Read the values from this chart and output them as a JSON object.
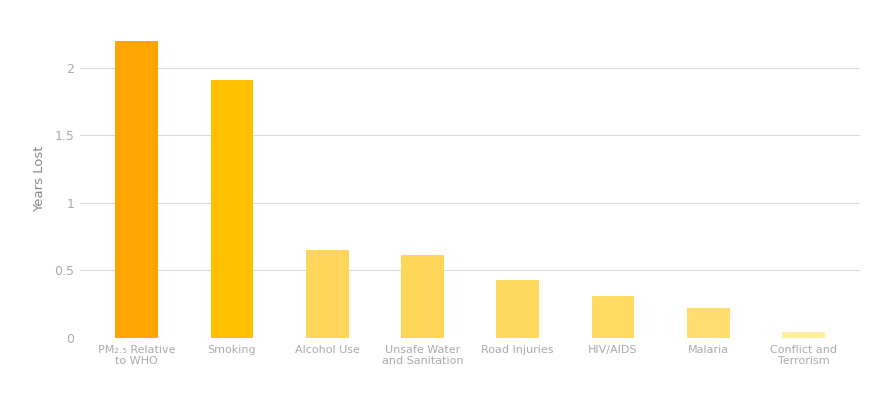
{
  "categories": [
    "PM₂.₅ Relative\nto WHO",
    "Smoking",
    "Alcohol Use",
    "Unsafe Water\nand Sanitation",
    "Road Injuries",
    "HIV/AIDS",
    "Malaria",
    "Conflict and\nTerrorism"
  ],
  "values": [
    2.2,
    1.91,
    0.65,
    0.61,
    0.43,
    0.31,
    0.22,
    0.04
  ],
  "bar_colors": [
    "#FFA500",
    "#FFC000",
    "#FFD55A",
    "#FFD55A",
    "#FFD860",
    "#FFDA65",
    "#FFDD70",
    "#FFEEA0"
  ],
  "ylabel": "Years Lost",
  "yticks": [
    0,
    0.5,
    1,
    1.5,
    2
  ],
  "ylim": [
    0,
    2.35
  ],
  "background_color": "#ffffff",
  "grid_color": "#d8d8d8",
  "tick_label_color": "#aaaaaa",
  "axis_label_color": "#888888",
  "bar_width": 0.45,
  "figsize": [
    8.87,
    4.12
  ],
  "dpi": 100
}
